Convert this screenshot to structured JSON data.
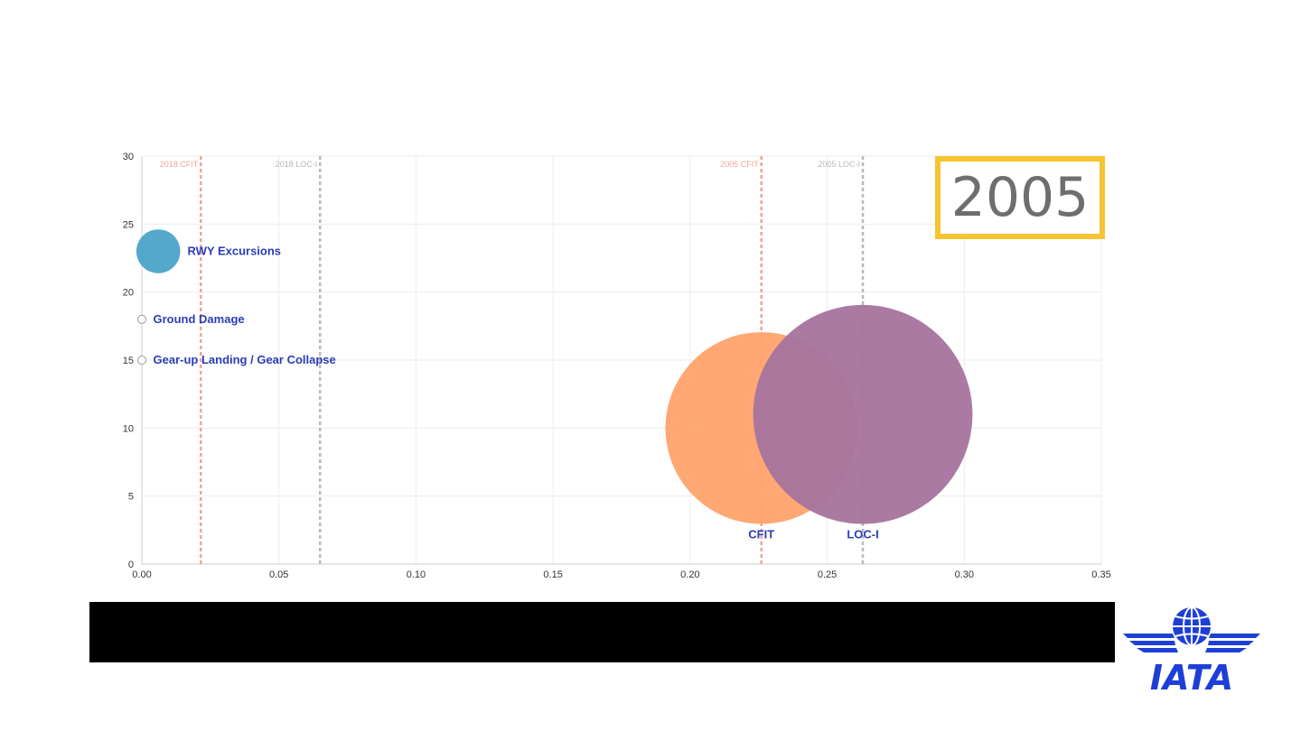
{
  "year_label": "2005",
  "logo_text": "IATA",
  "colors": {
    "rwy_excursions": "#4aa3c8",
    "cfit": "#ffa36c",
    "loc_i": "#a5739e",
    "ref_cfit": "#f1a39a",
    "ref_loci": "#b9b9b9",
    "label": "#2a3db8",
    "year_border": "#f6c431",
    "logo": "#1e3fd6"
  },
  "chart_data": {
    "type": "scatter",
    "subtype": "bubble",
    "title": "",
    "xlabel": "",
    "ylabel": "",
    "xlim": [
      0,
      0.35
    ],
    "ylim": [
      0,
      30
    ],
    "xticks": [
      "0.00",
      "0.05",
      "0.10",
      "0.15",
      "0.20",
      "0.25",
      "0.30",
      "0.35"
    ],
    "yticks": [
      "0",
      "5",
      "10",
      "15",
      "20",
      "25",
      "30"
    ],
    "grid": true,
    "legend": "none",
    "series": [
      {
        "name": "RWY Excursions",
        "x": 0.006,
        "y": 23,
        "size": 0.008,
        "color": "rwy_excursions",
        "label_side": "right"
      },
      {
        "name": "Ground Damage",
        "x": 0.0,
        "y": 18,
        "size": 0.0015,
        "color": "none",
        "label_side": "right"
      },
      {
        "name": "Gear-up Landing / Gear Collapse",
        "x": 0.0,
        "y": 15,
        "size": 0.0015,
        "color": "none",
        "label_side": "right"
      },
      {
        "name": "CFIT",
        "x": 0.226,
        "y": 10,
        "size": 0.035,
        "color": "cfit",
        "label_side": "below"
      },
      {
        "name": "LOC-I",
        "x": 0.263,
        "y": 11,
        "size": 0.04,
        "color": "loc_i",
        "label_side": "below"
      }
    ],
    "reference_lines": [
      {
        "label": "2018 CFIT",
        "x": 0.0215,
        "color": "ref_cfit"
      },
      {
        "label": "2018 LOC-I",
        "x": 0.065,
        "color": "ref_loci"
      },
      {
        "label": "2005 CFIT",
        "x": 0.226,
        "color": "ref_cfit"
      },
      {
        "label": "2005 LOC-I",
        "x": 0.263,
        "color": "ref_loci"
      }
    ]
  }
}
